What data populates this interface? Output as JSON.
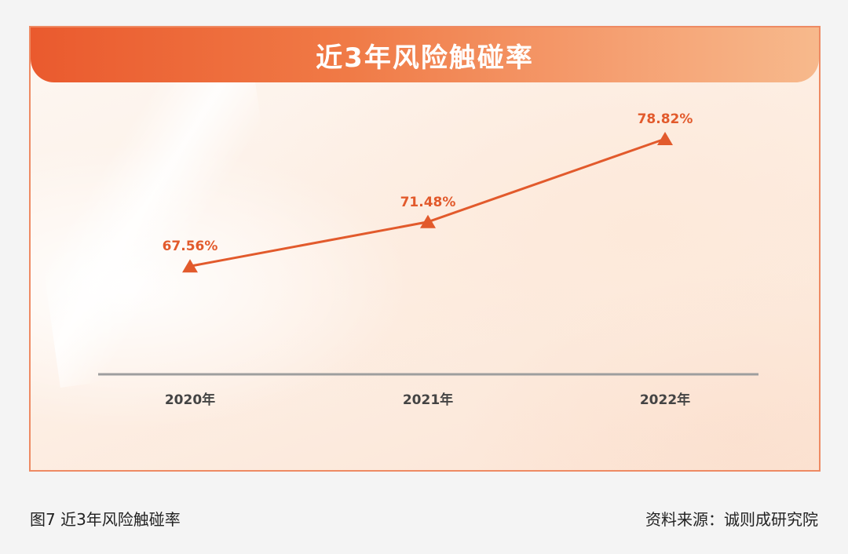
{
  "figure": {
    "caption": "图7 近3年风险触碰率",
    "source": "资料来源：诚则成研究院"
  },
  "colors": {
    "accent": "#e25a2c",
    "axis": "#9e9e9e",
    "tick_text": "#444444"
  },
  "chart_data": {
    "type": "line",
    "title": "近3年风险触碰率",
    "categories": [
      "2020年",
      "2021年",
      "2022年"
    ],
    "series": [
      {
        "values": [
          67.56,
          71.48,
          78.82
        ],
        "labels": [
          "67.56%",
          "71.48%",
          "78.82%"
        ],
        "marker": "triangle"
      }
    ],
    "ylim": [
      58,
      80
    ],
    "grid": false,
    "legend": "none"
  }
}
